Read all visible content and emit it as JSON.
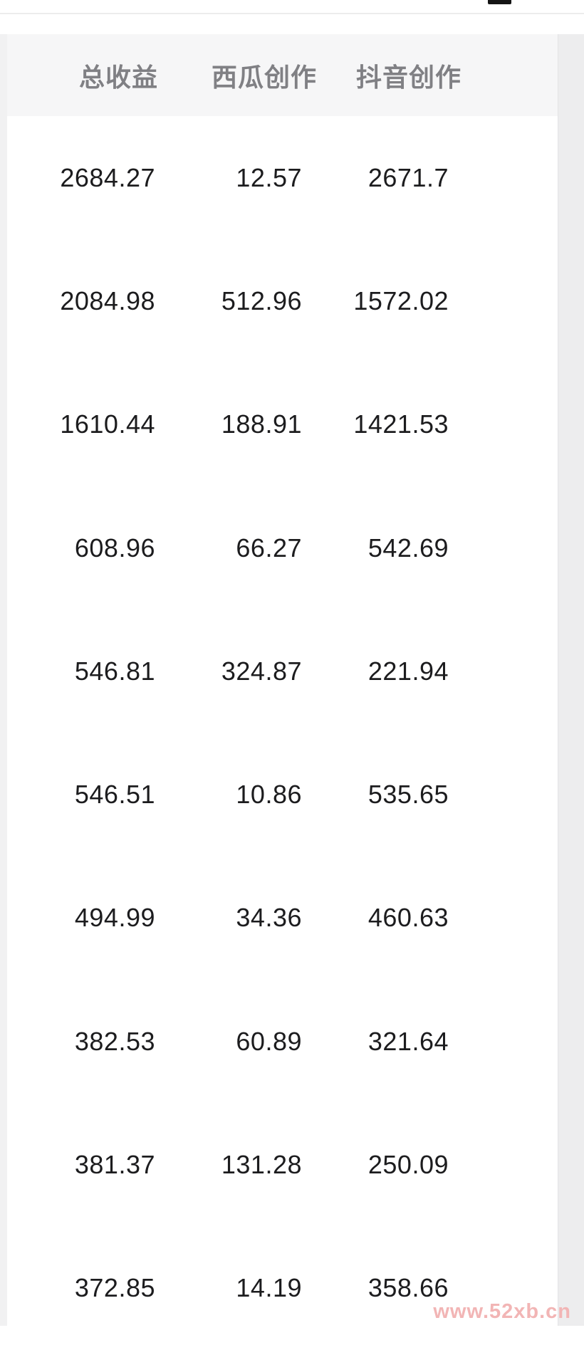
{
  "table": {
    "columns": [
      "总收益",
      "西瓜创作",
      "抖音创作"
    ],
    "rows": [
      [
        "2684.27",
        "12.57",
        "2671.7"
      ],
      [
        "2084.98",
        "512.96",
        "1572.02"
      ],
      [
        "1610.44",
        "188.91",
        "1421.53"
      ],
      [
        "608.96",
        "66.27",
        "542.69"
      ],
      [
        "546.81",
        "324.87",
        "221.94"
      ],
      [
        "546.51",
        "10.86",
        "535.65"
      ],
      [
        "494.99",
        "34.36",
        "460.63"
      ],
      [
        "382.53",
        "60.89",
        "321.64"
      ],
      [
        "381.37",
        "131.28",
        "250.09"
      ],
      [
        "372.85",
        "14.19",
        "358.66"
      ]
    ]
  },
  "watermark": "www.52xb.cn",
  "colors": {
    "page_bg": "#ffffff",
    "header_bg": "#f6f6f7",
    "left_strip": "#f1f1f2",
    "right_strip": "#ededee",
    "divider": "#ececec",
    "number_text": "#1c1c1e",
    "header_text": "#808084",
    "watermark": "#f2b5b5",
    "notch": "#141414"
  }
}
